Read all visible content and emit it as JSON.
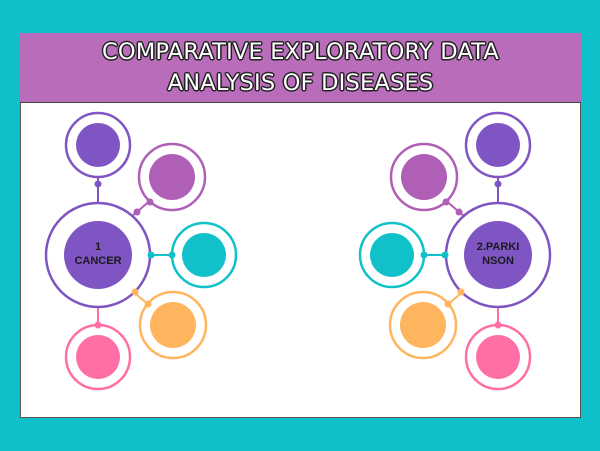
{
  "banner": {
    "line1": "COMPARATIVE EXPLORATORY DATA",
    "line2": "ANALYSIS OF DISEASES"
  },
  "diagrams": [
    {
      "label_line1": "1",
      "label_line2": "CANCER"
    },
    {
      "label_line1": "2.PARKI",
      "label_line2": "NSON"
    }
  ],
  "colors": {
    "background": "#0fbfc9",
    "banner": "#b86cb9",
    "hub": "#7e55c2",
    "magenta": "#b05fb6",
    "teal": "#10c1c9",
    "orange": "#ffb55e",
    "pink": "#ff6fa6"
  }
}
